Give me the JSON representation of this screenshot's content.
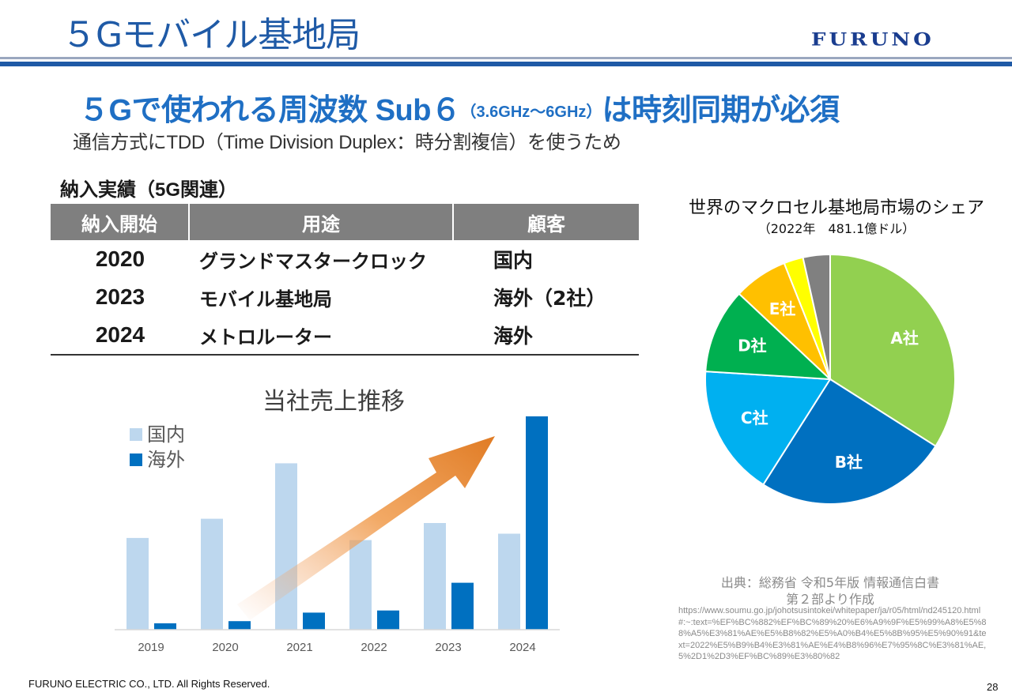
{
  "header": {
    "title": "５Gモバイル基地局",
    "logo_text": "FURUNO"
  },
  "headline": {
    "main": "５Gで使われる周波数 Sub６",
    "freq": "（3.6GHz〜6GHz）",
    "tail": "は時刻同期が必須",
    "sub": "通信方式にTDD（Time Division Duplex：時分割複信）を使うため"
  },
  "table": {
    "title": "納入実績（5G関連）",
    "headers": [
      "納入開始",
      "用途",
      "顧客"
    ],
    "rows": [
      {
        "year": "2020",
        "use": "グランドマスタークロック",
        "customer": "国内"
      },
      {
        "year": "2023",
        "use": "モバイル基地局",
        "customer": "海外（2社）"
      },
      {
        "year": "2024",
        "use": "メトロルーター",
        "customer": "海外"
      }
    ]
  },
  "chart_data": [
    {
      "type": "bar",
      "title": "当社売上推移",
      "categories": [
        "2019",
        "2020",
        "2021",
        "2022",
        "2023",
        "2024"
      ],
      "series": [
        {
          "name": "国内",
          "color": "#bdd7ee",
          "values": [
            43,
            52,
            78,
            42,
            50,
            45
          ]
        },
        {
          "name": "海外",
          "color": "#0070c0",
          "values": [
            3,
            4,
            8,
            9,
            22,
            100
          ]
        }
      ],
      "ylim": [
        0,
        100
      ],
      "legend": "top-left",
      "grid": false,
      "annotation": "orange upward trend arrow"
    },
    {
      "type": "pie",
      "title": "世界のマクロセル基地局市場のシェア",
      "subtitle": "（2022年　481.1億ドル）",
      "slices": [
        {
          "label": "A社",
          "value": 34,
          "color": "#92d050"
        },
        {
          "label": "B社",
          "value": 25,
          "color": "#0070c0"
        },
        {
          "label": "C社",
          "value": 17,
          "color": "#00b0f0"
        },
        {
          "label": "D社",
          "value": 11,
          "color": "#00b050"
        },
        {
          "label": "E社",
          "value": 7,
          "color": "#ffc000"
        },
        {
          "label": "",
          "value": 2.5,
          "color": "#ffff00"
        },
        {
          "label": "",
          "value": 3.5,
          "color": "#808080"
        }
      ]
    }
  ],
  "source": {
    "line1": "出典：総務省 令和5年版 情報通信白書",
    "line2": "第２部より作成",
    "url": "https://www.soumu.go.jp/johotsusintokei/whitepaper/ja/r05/html/nd245120.html#:~:text=%EF%BC%882%EF%BC%89%20%E6%A9%9F%E5%99%A8%E5%88%A5%E3%81%AE%E5%B8%82%E5%A0%B4%E5%8B%95%E5%90%91&text=2022%E5%B9%B4%E3%81%AE%E4%B8%96%E7%95%8C%E3%81%AE,5%2D1%2D3%EF%BC%89%E3%80%82"
  },
  "footer": {
    "copyright": "FURUNO ELECTRIC CO., LTD. All Rights Reserved.",
    "page_number": "28"
  }
}
